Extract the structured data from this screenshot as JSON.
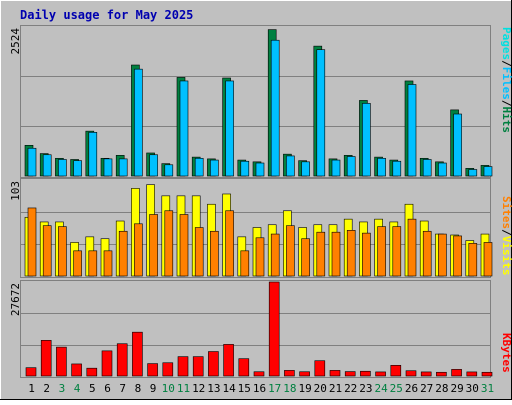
{
  "title": "Daily usage for May 2025",
  "colors": {
    "background": "#c0c0c0",
    "panel": "#c0c0c0",
    "title": "#0000b0",
    "hits": "#008040",
    "files": "#00c0ff",
    "pages": "#00e0e0",
    "visits": "#ffff00",
    "sites": "#ff8000",
    "kbytes": "#ff0000",
    "weekend_day": "#008040",
    "normal_day": "#000000"
  },
  "chart_data": [
    {
      "type": "bar",
      "panel": "hits",
      "ymax_label": "2524",
      "ylim": [
        0,
        2524
      ],
      "legend": [
        "Pages",
        "/",
        "Files",
        "/",
        "Hits"
      ],
      "categories": [
        "1",
        "2",
        "3",
        "4",
        "5",
        "6",
        "7",
        "8",
        "9",
        "10",
        "11",
        "12",
        "13",
        "14",
        "15",
        "16",
        "17",
        "18",
        "19",
        "20",
        "21",
        "22",
        "23",
        "24",
        "25",
        "26",
        "27",
        "28",
        "29",
        "30",
        "31"
      ],
      "series": [
        {
          "name": "Hits",
          "values": [
            520,
            380,
            300,
            280,
            760,
            300,
            350,
            1880,
            390,
            210,
            1670,
            320,
            290,
            1660,
            270,
            240,
            2480,
            370,
            260,
            2200,
            290,
            350,
            1280,
            320,
            270,
            1610,
            300,
            240,
            1120,
            130,
            180
          ]
        },
        {
          "name": "Files",
          "values": [
            470,
            360,
            280,
            260,
            740,
            290,
            290,
            1810,
            360,
            190,
            1610,
            300,
            270,
            1610,
            250,
            220,
            2300,
            340,
            240,
            2140,
            270,
            330,
            1230,
            300,
            250,
            1550,
            280,
            220,
            1050,
            110,
            160
          ]
        }
      ]
    },
    {
      "type": "bar",
      "panel": "visits",
      "ymax_label": "103",
      "ylim": [
        0,
        103
      ],
      "legend": [
        "Sites",
        "/",
        "Visits"
      ],
      "categories": [
        "1",
        "2",
        "3",
        "4",
        "5",
        "6",
        "7",
        "8",
        "9",
        "10",
        "11",
        "12",
        "13",
        "14",
        "15",
        "16",
        "17",
        "18",
        "19",
        "20",
        "21",
        "22",
        "23",
        "24",
        "25",
        "26",
        "27",
        "28",
        "29",
        "30",
        "31"
      ],
      "series": [
        {
          "name": "Visits",
          "values": [
            63,
            58,
            58,
            36,
            42,
            40,
            59,
            94,
            98,
            86,
            86,
            86,
            77,
            88,
            42,
            52,
            55,
            70,
            52,
            55,
            55,
            61,
            58,
            61,
            58,
            77,
            59,
            45,
            44,
            38,
            45
          ]
        },
        {
          "name": "Sites",
          "values": [
            73,
            54,
            53,
            27,
            27,
            27,
            48,
            56,
            66,
            70,
            66,
            52,
            48,
            70,
            27,
            41,
            45,
            54,
            40,
            47,
            47,
            49,
            46,
            53,
            53,
            61,
            48,
            45,
            43,
            35,
            36
          ]
        }
      ]
    },
    {
      "type": "bar",
      "panel": "kbytes",
      "ymax_label": "27672",
      "ylim": [
        0,
        27672
      ],
      "legend": [
        "KBytes"
      ],
      "categories": [
        "1",
        "2",
        "3",
        "4",
        "5",
        "6",
        "7",
        "8",
        "9",
        "10",
        "11",
        "12",
        "13",
        "14",
        "15",
        "16",
        "17",
        "18",
        "19",
        "20",
        "21",
        "22",
        "23",
        "24",
        "25",
        "26",
        "27",
        "28",
        "29",
        "30",
        "31"
      ],
      "series": [
        {
          "name": "KBytes",
          "values": [
            2450,
            10500,
            8500,
            3550,
            2300,
            7400,
            9500,
            12900,
            3650,
            3900,
            5700,
            5700,
            7200,
            9300,
            5100,
            1250,
            27672,
            1650,
            1250,
            4500,
            1650,
            1300,
            1400,
            1200,
            3150,
            1550,
            1200,
            1100,
            1950,
            1200,
            1100
          ]
        }
      ]
    }
  ],
  "day_labels": [
    "1",
    "2",
    "3",
    "4",
    "5",
    "6",
    "7",
    "8",
    "9",
    "10",
    "11",
    "12",
    "13",
    "14",
    "15",
    "16",
    "17",
    "18",
    "19",
    "20",
    "21",
    "22",
    "23",
    "24",
    "25",
    "26",
    "27",
    "28",
    "29",
    "30",
    "31"
  ],
  "weekend_days": [
    "3",
    "4",
    "10",
    "11",
    "17",
    "18",
    "24",
    "25",
    "31"
  ]
}
